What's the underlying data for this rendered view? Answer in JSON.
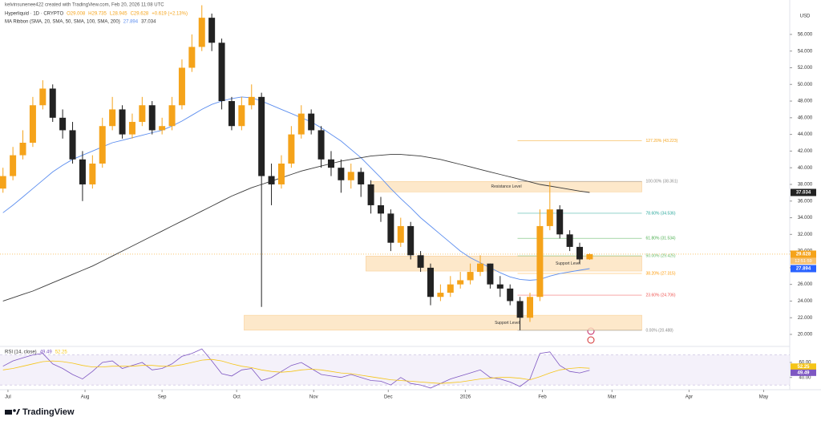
{
  "chart_data": [
    {
      "type": "candlestick",
      "caption": "kelvinsunenee422 created with TradingView.com, Feb 20, 2026 11:08 UTC",
      "symbol": "Hyperliquid · 1D · CRYPTO",
      "ohlc_legend": [
        "O29.008",
        "H29.735",
        "L28.945",
        "C29.628",
        "+0.619 (+2.13%)"
      ],
      "indicator_legend": [
        "MA Ribbon (SMA, 20, SMA, 50, SMA, 100, SMA, 200)",
        "27.894",
        "37.034"
      ],
      "currency": "USD",
      "brand": "TradingView",
      "x": [
        -2,
        2,
        6,
        10,
        14,
        18,
        22,
        26,
        30,
        34,
        38,
        42,
        46,
        50,
        54,
        58,
        62,
        66,
        70,
        74,
        78,
        82,
        86,
        90,
        94,
        98,
        102,
        106,
        110,
        114,
        118,
        122,
        126,
        130,
        134,
        138,
        142,
        146,
        150,
        154,
        158,
        162,
        166,
        170,
        174,
        178,
        182,
        186,
        190,
        194,
        198,
        202,
        206,
        210,
        214,
        218,
        222,
        226,
        230,
        234
      ],
      "open": [
        37.5,
        39.0,
        41.5,
        43.0,
        47.5,
        49.5,
        46.0,
        44.5,
        41.0,
        38.0,
        40.5,
        45.0,
        47.0,
        44.0,
        45.5,
        47.5,
        44.5,
        45.0,
        47.5,
        52.0,
        54.5,
        58.0,
        55.0,
        48.0,
        45.0,
        47.5,
        48.5,
        39.0,
        38.0,
        40.5,
        44.0,
        46.5,
        44.5,
        41.0,
        40.0,
        38.5,
        39.5,
        38.0,
        35.5,
        34.5,
        31.0,
        33.0,
        29.5,
        28.0,
        24.5,
        25.0,
        26.0,
        26.5,
        27.5,
        28.5,
        26.0,
        25.5,
        24.0,
        22.0,
        24.5,
        33.0,
        35.0,
        32.0,
        30.5,
        29.008
      ],
      "high": [
        40.0,
        42.5,
        44.5,
        48.5,
        50.5,
        50.0,
        47.0,
        45.5,
        42.0,
        41.5,
        46.0,
        48.5,
        47.5,
        46.5,
        48.5,
        48.0,
        46.0,
        48.5,
        53.0,
        56.0,
        59.5,
        58.5,
        55.5,
        48.5,
        48.5,
        50.0,
        49.0,
        40.5,
        41.5,
        45.0,
        47.5,
        47.0,
        45.0,
        42.0,
        41.0,
        40.5,
        40.0,
        38.5,
        36.5,
        35.0,
        34.0,
        33.5,
        30.0,
        28.5,
        26.0,
        27.0,
        27.5,
        28.5,
        29.5,
        28.5,
        27.0,
        26.0,
        24.5,
        25.0,
        35.0,
        38.3,
        35.5,
        32.5,
        31.0,
        29.735
      ],
      "low": [
        37.0,
        38.5,
        41.0,
        42.5,
        47.0,
        45.5,
        43.5,
        40.5,
        36.0,
        37.5,
        40.0,
        44.5,
        43.5,
        43.5,
        45.0,
        44.0,
        44.0,
        44.5,
        47.0,
        51.5,
        54.0,
        54.0,
        47.0,
        44.5,
        44.5,
        47.0,
        23.3,
        35.5,
        37.5,
        40.0,
        43.5,
        44.0,
        40.0,
        39.0,
        37.0,
        37.5,
        36.5,
        34.5,
        33.5,
        30.0,
        30.5,
        29.0,
        27.5,
        23.5,
        24.0,
        24.5,
        25.5,
        26.0,
        27.0,
        25.5,
        24.5,
        23.5,
        20.5,
        21.5,
        24.0,
        32.5,
        31.5,
        30.0,
        28.5,
        28.945
      ],
      "close": [
        39.0,
        41.5,
        43.0,
        47.5,
        49.5,
        46.0,
        44.5,
        41.0,
        38.0,
        40.5,
        45.0,
        47.0,
        44.0,
        45.5,
        47.5,
        44.5,
        45.0,
        47.5,
        52.0,
        54.5,
        58.0,
        55.0,
        48.0,
        45.0,
        47.5,
        48.5,
        39.0,
        38.0,
        40.5,
        44.0,
        46.5,
        44.5,
        41.0,
        40.0,
        38.5,
        39.5,
        38.0,
        35.5,
        34.5,
        31.0,
        33.0,
        29.5,
        28.0,
        24.5,
        25.0,
        26.0,
        26.5,
        27.5,
        28.5,
        26.0,
        25.5,
        24.0,
        22.0,
        24.5,
        33.0,
        35.0,
        32.0,
        30.5,
        29.0,
        29.628
      ],
      "up_color": "#f5a31a",
      "down_color": "#222222",
      "lines": [
        {
          "color": "#5b8def",
          "values": [
            34.6,
            35.5,
            36.5,
            37.5,
            38.5,
            39.5,
            40.3,
            41.0,
            41.5,
            42.0,
            42.5,
            43.0,
            43.3,
            43.6,
            43.9,
            44.2,
            44.5,
            45.0,
            45.6,
            46.3,
            47.0,
            47.6,
            48.0,
            48.3,
            48.5,
            48.4,
            48.0,
            47.5,
            47.0,
            46.5,
            46.0,
            45.5,
            44.8,
            44.0,
            43.2,
            42.2,
            41.2,
            40.0,
            38.8,
            37.5,
            36.3,
            35.2,
            34.0,
            33.0,
            32.0,
            31.0,
            30.0,
            29.2,
            28.6,
            28.0,
            27.4,
            26.9,
            26.6,
            26.5,
            26.6,
            27.0,
            27.3,
            27.5,
            27.7,
            27.894
          ]
        },
        {
          "color": "#3a3a3a",
          "values": [
            24.0,
            24.4,
            24.8,
            25.2,
            25.7,
            26.2,
            26.7,
            27.2,
            27.7,
            28.2,
            28.8,
            29.4,
            30.0,
            30.6,
            31.2,
            31.8,
            32.4,
            33.0,
            33.6,
            34.2,
            34.8,
            35.4,
            36.0,
            36.6,
            37.1,
            37.6,
            38.0,
            38.4,
            38.8,
            39.2,
            39.6,
            39.9,
            40.2,
            40.5,
            40.8,
            41.0,
            41.2,
            41.4,
            41.5,
            41.6,
            41.6,
            41.5,
            41.4,
            41.2,
            41.0,
            40.7,
            40.4,
            40.1,
            39.8,
            39.5,
            39.2,
            38.9,
            38.6,
            38.3,
            38.0,
            37.8,
            37.6,
            37.4,
            37.2,
            37.034
          ]
        }
      ],
      "zones": [
        {
          "label": "Resistance Level",
          "x": [
            146,
            255
          ],
          "range": [
            37.1,
            38.35
          ]
        },
        {
          "label": "Support Level",
          "x": [
            144,
            255
          ],
          "range": [
            27.6,
            29.4
          ]
        },
        {
          "label": "Support Level",
          "x": [
            95,
            255
          ],
          "range": [
            20.5,
            22.3
          ]
        }
      ],
      "fib_x": [
        205,
        255
      ],
      "fib_levels": [
        {
          "label": "127.20% (43.223)",
          "value": 43.223,
          "color": "#f5a31a"
        },
        {
          "label": "100.00% (38.361)",
          "value": 38.361,
          "color": "#888888"
        },
        {
          "label": "78.60% (34.536)",
          "value": 34.536,
          "color": "#26a69a"
        },
        {
          "label": "61.80% (31.534)",
          "value": 31.534,
          "color": "#4caf50"
        },
        {
          "label": "50.00% (29.425)",
          "value": 29.425,
          "color": "#66bb6a"
        },
        {
          "label": "38.20% (27.315)",
          "value": 27.315,
          "color": "#ff9800"
        },
        {
          "label": "23.60% (24.706)",
          "value": 24.706,
          "color": "#ef5350"
        },
        {
          "label": "0.00% (20.488)",
          "value": 20.488,
          "color": "#888888"
        }
      ],
      "price_tags": [
        {
          "value": 37.034,
          "label": "37.034",
          "color": "#222222"
        },
        {
          "value": 29.628,
          "label": "29.628",
          "color": "#f5a31a"
        },
        {
          "value": 27.894,
          "label": "27.894",
          "color": "#2962ff"
        }
      ],
      "countdown": "12:51:59",
      "xlim": [
        -3.2,
        314.5
      ],
      "xticks": [
        {
          "value": 0,
          "label": "Jul"
        },
        {
          "value": 31,
          "label": "Aug"
        },
        {
          "value": 62,
          "label": "Sep"
        },
        {
          "value": 92,
          "label": "Oct"
        },
        {
          "value": 123,
          "label": "Nov"
        },
        {
          "value": 153,
          "label": "Dec"
        },
        {
          "value": 184,
          "label": "2026"
        },
        {
          "value": 215,
          "label": "Feb"
        },
        {
          "value": 243,
          "label": "Mar"
        },
        {
          "value": 274,
          "label": "Apr"
        },
        {
          "value": 304,
          "label": "May"
        }
      ],
      "ylim": [
        18.75,
        60.13
      ],
      "yticks": [
        {
          "value": 20,
          "label": "20.000"
        },
        {
          "value": 22,
          "label": "22.000"
        },
        {
          "value": 24,
          "label": "24.000"
        },
        {
          "value": 26,
          "label": "26.000"
        },
        {
          "value": 28,
          "label": "28.000"
        },
        {
          "value": 30,
          "label": "30.000"
        },
        {
          "value": 32,
          "label": "32.000"
        },
        {
          "value": 34,
          "label": "34.000"
        },
        {
          "value": 36,
          "label": "36.000"
        },
        {
          "value": 38,
          "label": "38.000"
        },
        {
          "value": 40,
          "label": "40.000"
        },
        {
          "value": 42,
          "label": "42.000"
        },
        {
          "value": 44,
          "label": "44.000"
        },
        {
          "value": 46,
          "label": "46.000"
        },
        {
          "value": 48,
          "label": "48.000"
        },
        {
          "value": 50,
          "label": "50.000"
        },
        {
          "value": 52,
          "label": "52.000"
        },
        {
          "value": 54,
          "label": "54.000"
        },
        {
          "value": 56,
          "label": "56.000"
        }
      ]
    },
    {
      "type": "line",
      "title": "RSI (14, close)",
      "legend_values": [
        "49.49",
        "52.25"
      ],
      "band": [
        30,
        70
      ],
      "x": [
        -2,
        2,
        6,
        10,
        14,
        18,
        22,
        26,
        30,
        34,
        38,
        42,
        46,
        50,
        54,
        58,
        62,
        66,
        70,
        74,
        78,
        82,
        86,
        90,
        94,
        98,
        102,
        106,
        110,
        114,
        118,
        122,
        126,
        130,
        134,
        138,
        142,
        146,
        150,
        154,
        158,
        162,
        166,
        170,
        174,
        178,
        182,
        186,
        190,
        194,
        198,
        202,
        206,
        210,
        214,
        218,
        222,
        226,
        230,
        234
      ],
      "series": [
        {
          "color": "#7e57c2",
          "values": [
            55,
            62,
            66,
            70,
            72,
            58,
            52,
            44,
            38,
            48,
            60,
            62,
            52,
            56,
            60,
            50,
            52,
            58,
            68,
            72,
            78,
            62,
            45,
            42,
            50,
            52,
            36,
            40,
            48,
            56,
            60,
            52,
            44,
            42,
            40,
            44,
            40,
            36,
            35,
            30,
            40,
            32,
            30,
            26,
            32,
            38,
            42,
            46,
            50,
            40,
            38,
            34,
            28,
            38,
            72,
            74,
            56,
            48,
            46,
            49.49
          ]
        },
        {
          "color": "#f5c518",
          "values": [
            50,
            52,
            55,
            58,
            61,
            62,
            61,
            59,
            56,
            54,
            54,
            55,
            55,
            55,
            56,
            56,
            55,
            55,
            57,
            60,
            63,
            64,
            62,
            58,
            55,
            53,
            50,
            48,
            47,
            48,
            50,
            51,
            50,
            48,
            46,
            45,
            43,
            41,
            39,
            37,
            36,
            35,
            34,
            33,
            32,
            33,
            34,
            36,
            38,
            39,
            40,
            40,
            39,
            37,
            41,
            46,
            50,
            52,
            53,
            52.25
          ]
        }
      ],
      "value_tags": [
        {
          "value": 52.25,
          "label": "52.25",
          "color": "#f5c518"
        },
        {
          "value": 49.49,
          "label": "49.49",
          "color": "#7e57c2"
        }
      ],
      "ylim": [
        28,
        77
      ],
      "yticks": [
        {
          "value": 60,
          "label": "60.00"
        },
        {
          "value": 40,
          "label": "40.00"
        }
      ]
    }
  ]
}
